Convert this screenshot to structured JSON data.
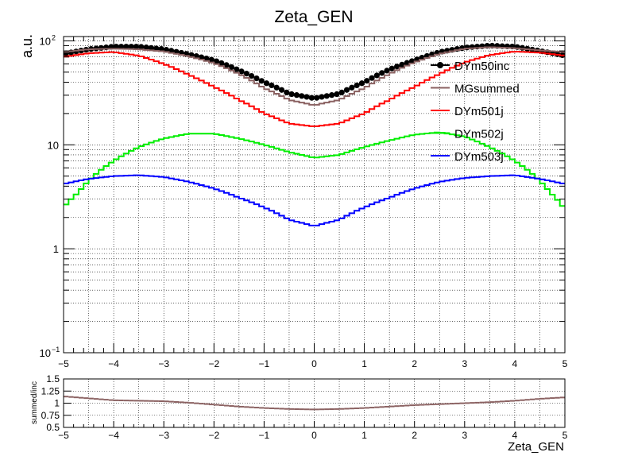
{
  "chart_data": [
    {
      "type": "line",
      "title": "Zeta_GEN",
      "xlabel": "",
      "ylabel": "a.u.",
      "xlim": [
        -5,
        5
      ],
      "ylim": [
        0.1,
        110
      ],
      "yscale": "log",
      "grid": true,
      "legend": "top-right",
      "x_ticks": [
        "−5",
        "−4",
        "−3",
        "−2",
        "−1",
        "0",
        "1",
        "2",
        "3",
        "4",
        "5"
      ],
      "y_ticks": [
        {
          "value": 100,
          "label": "10",
          "exp": "2"
        },
        {
          "value": 10,
          "label": "10",
          "exp": ""
        },
        {
          "value": 1,
          "label": "1",
          "exp": ""
        },
        {
          "value": 0.1,
          "label": "10",
          "exp": "−1"
        }
      ],
      "series": [
        {
          "name": "DYm50inc",
          "color": "#000000",
          "style": "markers",
          "points": [
            [
              -5,
              75
            ],
            [
              -4.5,
              83
            ],
            [
              -4,
              88
            ],
            [
              -3.5,
              88
            ],
            [
              -3,
              83
            ],
            [
              -2.5,
              74
            ],
            [
              -2,
              65
            ],
            [
              -1.5,
              52
            ],
            [
              -1,
              40
            ],
            [
              -0.5,
              31
            ],
            [
              0,
              28
            ],
            [
              0.5,
              31
            ],
            [
              1,
              40
            ],
            [
              1.5,
              53
            ],
            [
              2,
              65
            ],
            [
              2.5,
              78
            ],
            [
              3,
              86
            ],
            [
              3.5,
              90
            ],
            [
              4,
              88
            ],
            [
              4.5,
              80
            ],
            [
              5,
              72
            ]
          ]
        },
        {
          "name": "MGsummed",
          "color": "#8b6262",
          "style": "step",
          "points": [
            [
              -5,
              78
            ],
            [
              -4.5,
              83
            ],
            [
              -4,
              84
            ],
            [
              -3.5,
              83
            ],
            [
              -3,
              79
            ],
            [
              -2.5,
              71
            ],
            [
              -2,
              61
            ],
            [
              -1.5,
              48
            ],
            [
              -1,
              35
            ],
            [
              -0.5,
              27
            ],
            [
              0,
              24
            ],
            [
              0.5,
              27
            ],
            [
              1,
              35
            ],
            [
              1.5,
              48
            ],
            [
              2,
              62
            ],
            [
              2.5,
              75
            ],
            [
              3,
              84
            ],
            [
              3.5,
              87
            ],
            [
              4,
              85
            ],
            [
              4.5,
              81
            ],
            [
              5,
              78
            ]
          ]
        },
        {
          "name": "DYm501j",
          "color": "#ff0000",
          "style": "step",
          "points": [
            [
              -5,
              70
            ],
            [
              -4.5,
              76
            ],
            [
              -4,
              78
            ],
            [
              -3.5,
              72
            ],
            [
              -3,
              60
            ],
            [
              -2.5,
              47
            ],
            [
              -2,
              36
            ],
            [
              -1.5,
              27
            ],
            [
              -1,
              20
            ],
            [
              -0.5,
              16
            ],
            [
              0,
              15
            ],
            [
              0.5,
              16
            ],
            [
              1,
              20
            ],
            [
              1.5,
              27
            ],
            [
              2,
              36
            ],
            [
              2.5,
              48
            ],
            [
              3,
              62
            ],
            [
              3.5,
              73
            ],
            [
              4,
              79
            ],
            [
              4.5,
              77
            ],
            [
              5,
              72
            ]
          ]
        },
        {
          "name": "DYm502j",
          "color": "#00ee00",
          "style": "step",
          "points": [
            [
              -5,
              2.5
            ],
            [
              -4.7,
              3.5
            ],
            [
              -4.4,
              5
            ],
            [
              -4,
              7
            ],
            [
              -3.5,
              9.5
            ],
            [
              -3,
              11.5
            ],
            [
              -2.5,
              12.8
            ],
            [
              -2,
              12.8
            ],
            [
              -1.5,
              11.5
            ],
            [
              -1,
              10
            ],
            [
              -0.5,
              8.5
            ],
            [
              0,
              7.5
            ],
            [
              0.5,
              8
            ],
            [
              1,
              9.5
            ],
            [
              1.5,
              11
            ],
            [
              2,
              12.5
            ],
            [
              2.5,
              13.2
            ],
            [
              3,
              12
            ],
            [
              3.5,
              9.5
            ],
            [
              4,
              7
            ],
            [
              4.4,
              5
            ],
            [
              4.7,
              3.5
            ],
            [
              5,
              2.4
            ]
          ]
        },
        {
          "name": "DYm503j",
          "color": "#0000ff",
          "style": "step",
          "points": [
            [
              -5,
              4.2
            ],
            [
              -4.5,
              4.7
            ],
            [
              -4,
              5.0
            ],
            [
              -3.5,
              5.1
            ],
            [
              -3,
              4.9
            ],
            [
              -2.5,
              4.4
            ],
            [
              -2,
              3.8
            ],
            [
              -1.5,
              3.1
            ],
            [
              -1,
              2.5
            ],
            [
              -0.5,
              1.9
            ],
            [
              0,
              1.65
            ],
            [
              0.5,
              1.9
            ],
            [
              1,
              2.5
            ],
            [
              1.5,
              3.1
            ],
            [
              2,
              3.8
            ],
            [
              2.5,
              4.4
            ],
            [
              3,
              4.8
            ],
            [
              3.5,
              5.0
            ],
            [
              4,
              5.1
            ],
            [
              4.5,
              4.7
            ],
            [
              5,
              4.2
            ]
          ]
        }
      ]
    },
    {
      "type": "line",
      "title": "",
      "xlabel": "Zeta_GEN",
      "ylabel": "summed/inc",
      "xlim": [
        -5,
        5
      ],
      "ylim": [
        0.5,
        1.5
      ],
      "grid": true,
      "x_ticks": [
        "−5",
        "−4",
        "−3",
        "−2",
        "−1",
        "0",
        "1",
        "2",
        "3",
        "4",
        "5"
      ],
      "y_ticks": [
        "0.5",
        "0.75",
        "1",
        "1.25",
        "1.5"
      ],
      "series": [
        {
          "name": "",
          "color": "#8b6262",
          "style": "markers",
          "points": [
            [
              -5,
              1.14
            ],
            [
              -4.5,
              1.1
            ],
            [
              -4,
              1.06
            ],
            [
              -3.5,
              1.05
            ],
            [
              -3,
              1.04
            ],
            [
              -2.5,
              1.01
            ],
            [
              -2,
              0.97
            ],
            [
              -1.5,
              0.93
            ],
            [
              -1,
              0.9
            ],
            [
              -0.5,
              0.88
            ],
            [
              0,
              0.87
            ],
            [
              0.5,
              0.88
            ],
            [
              1,
              0.9
            ],
            [
              1.5,
              0.93
            ],
            [
              2,
              0.96
            ],
            [
              2.5,
              0.98
            ],
            [
              3,
              1.0
            ],
            [
              3.5,
              1.02
            ],
            [
              4,
              1.05
            ],
            [
              4.5,
              1.09
            ],
            [
              5,
              1.12
            ]
          ]
        }
      ]
    }
  ]
}
